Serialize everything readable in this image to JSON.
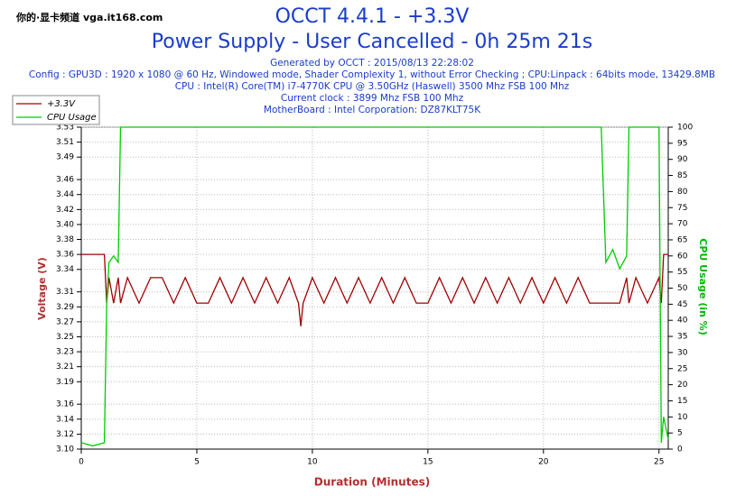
{
  "watermark": "你的·显卡频道 vga.it168.com",
  "chart_data": {
    "type": "line",
    "title": "OCCT 4.4.1 - +3.3V",
    "subtitle": "Power Supply - User Cancelled - 0h 25m 21s",
    "info": [
      "Generated by OCCT : 2015/08/13 22:28:02",
      "Config : GPU3D : 1920 x 1080 @ 60 Hz, Windowed mode, Shader Complexity 1, without Error Checking ; CPU:Linpack : 64bits mode, 13429.8MB",
      "CPU : Intel(R) Core(TM) i7-4770K CPU @ 3.50GHz (Haswell) 3500 Mhz FSB 100 Mhz",
      "Current clock : 3899 Mhz FSB 100 Mhz",
      "MotherBoard : Intel Corporation: DZ87KLT75K"
    ],
    "xlabel": "Duration (Minutes)",
    "ylabel": "Voltage (V)",
    "y2label": "CPU Usage (in %)",
    "grid": true,
    "legend": "top-left",
    "xlim": [
      0,
      25.4
    ],
    "xticks": [
      0,
      5,
      10,
      15,
      20,
      25
    ],
    "ylim": [
      3.1,
      3.53
    ],
    "yticks": [
      {
        "value": 3.1,
        "label": "3.10"
      },
      3.12,
      3.14,
      3.16,
      3.19,
      3.21,
      3.23,
      3.25,
      3.27,
      3.29,
      3.31,
      3.34,
      3.36,
      3.38,
      {
        "value": 3.4,
        "label": "3.40"
      },
      3.42,
      3.44,
      3.46,
      3.49,
      3.51,
      3.53
    ],
    "y2lim": [
      0,
      100
    ],
    "y2ticks": [
      0,
      5,
      10,
      15,
      20,
      25,
      30,
      35,
      40,
      45,
      50,
      55,
      60,
      65,
      70,
      75,
      80,
      85,
      90,
      95,
      100
    ],
    "x": [
      0,
      0.5,
      1.0,
      1.1,
      1.2,
      1.4,
      1.6,
      1.7,
      2,
      2.5,
      3,
      3.5,
      4,
      4.5,
      5,
      5.5,
      6,
      6.5,
      7,
      7.5,
      8,
      8.5,
      9,
      9.4,
      9.5,
      9.6,
      10,
      10.5,
      11,
      11.5,
      12,
      12.5,
      13,
      13.5,
      14,
      14.5,
      15,
      15.5,
      16,
      16.5,
      17,
      17.5,
      18,
      18.5,
      19,
      19.5,
      20,
      20.5,
      21,
      21.5,
      22,
      22.5,
      22.7,
      23,
      23.3,
      23.6,
      23.7,
      24,
      24.5,
      25,
      25.1,
      25.2,
      25.4
    ],
    "series": [
      {
        "name": "+3.3V",
        "color": "#a00000",
        "axis": "y",
        "values": [
          3.36,
          3.36,
          3.36,
          3.295,
          3.329,
          3.295,
          3.329,
          3.295,
          3.329,
          3.295,
          3.329,
          3.329,
          3.295,
          3.329,
          3.295,
          3.295,
          3.329,
          3.295,
          3.329,
          3.295,
          3.329,
          3.295,
          3.329,
          3.295,
          3.264,
          3.295,
          3.329,
          3.295,
          3.329,
          3.295,
          3.329,
          3.295,
          3.329,
          3.295,
          3.329,
          3.295,
          3.295,
          3.329,
          3.295,
          3.329,
          3.295,
          3.329,
          3.295,
          3.329,
          3.295,
          3.329,
          3.295,
          3.329,
          3.295,
          3.329,
          3.295,
          3.295,
          3.295,
          3.295,
          3.295,
          3.329,
          3.295,
          3.329,
          3.295,
          3.329,
          3.295,
          3.36,
          3.36
        ]
      },
      {
        "name": "CPU Usage",
        "color": "#00cc00",
        "axis": "y2",
        "values": [
          2,
          1,
          2,
          45,
          58,
          60,
          58,
          100,
          100,
          100,
          100,
          100,
          100,
          100,
          100,
          100,
          100,
          100,
          100,
          100,
          100,
          100,
          100,
          100,
          100,
          100,
          100,
          100,
          100,
          100,
          100,
          100,
          100,
          100,
          100,
          100,
          100,
          100,
          100,
          100,
          100,
          100,
          100,
          100,
          100,
          100,
          100,
          100,
          100,
          100,
          100,
          100,
          58,
          62,
          56,
          60,
          100,
          100,
          100,
          100,
          2,
          10,
          3
        ]
      }
    ]
  }
}
